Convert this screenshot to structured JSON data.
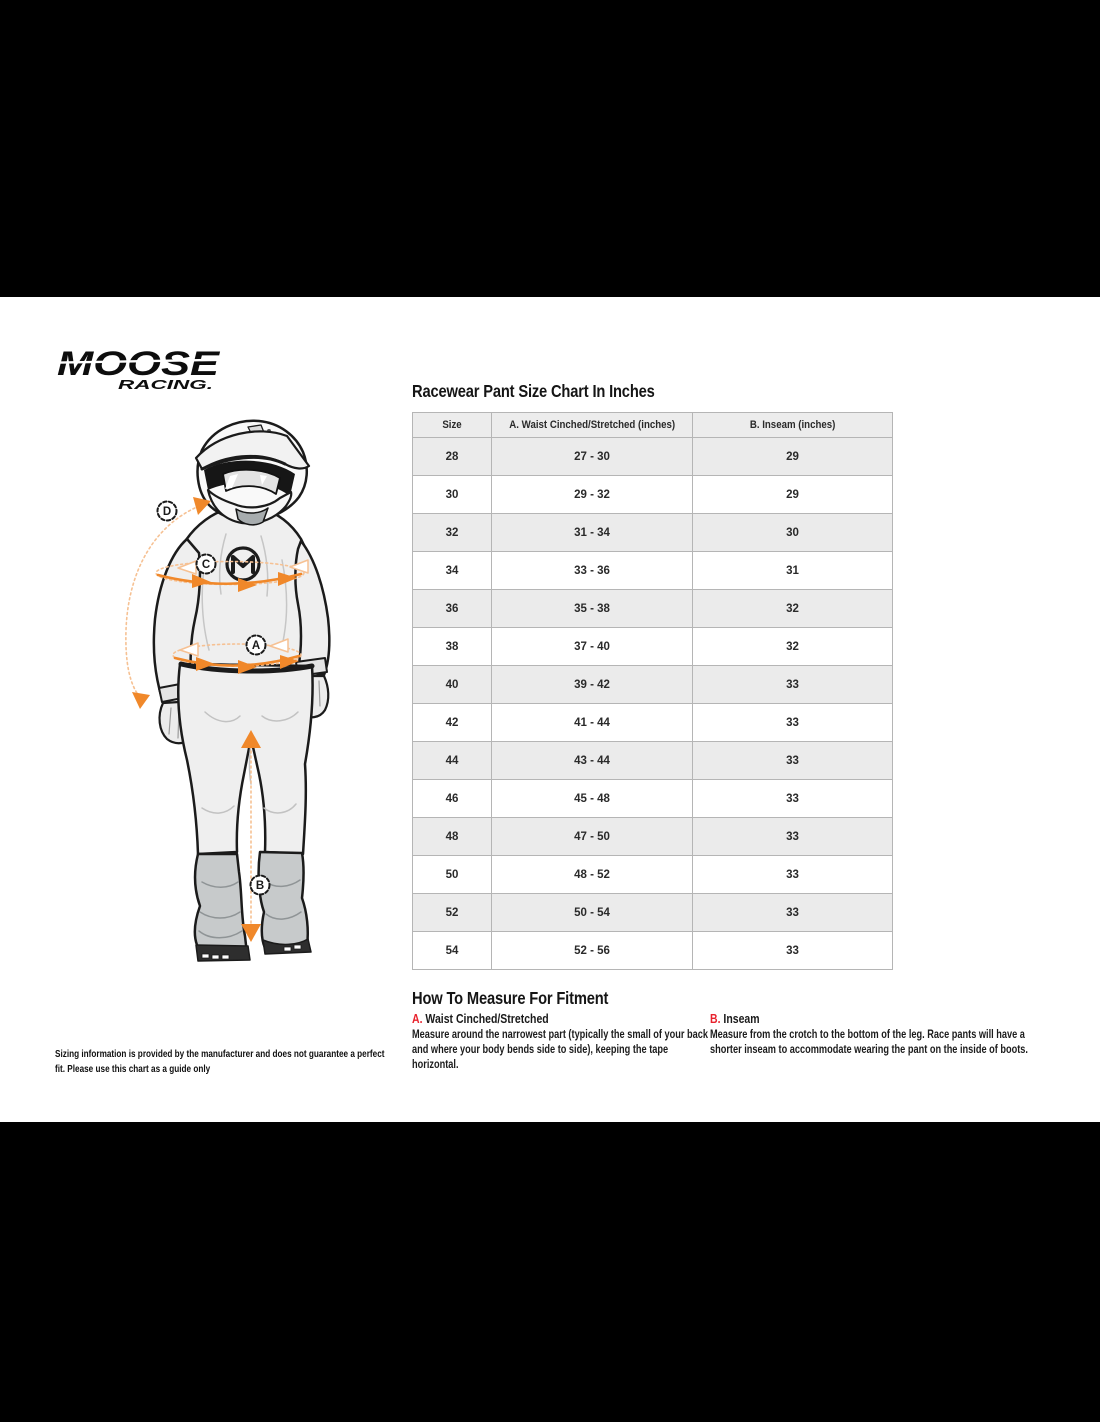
{
  "brand": {
    "name": "MOOSE",
    "sub": "RACING."
  },
  "size_chart": {
    "title": "Racewear Pant Size Chart In Inches",
    "columns": [
      "Size",
      "A. Waist Cinched/Stretched (inches)",
      "B. Inseam (inches)"
    ],
    "rows": [
      [
        "28",
        "27 - 30",
        "29"
      ],
      [
        "30",
        "29 - 32",
        "29"
      ],
      [
        "32",
        "31 - 34",
        "30"
      ],
      [
        "34",
        "33 - 36",
        "31"
      ],
      [
        "36",
        "35 - 38",
        "32"
      ],
      [
        "38",
        "37 - 40",
        "32"
      ],
      [
        "40",
        "39 - 42",
        "33"
      ],
      [
        "42",
        "41 - 44",
        "33"
      ],
      [
        "44",
        "43 - 44",
        "33"
      ],
      [
        "46",
        "45 - 48",
        "33"
      ],
      [
        "48",
        "47 - 50",
        "33"
      ],
      [
        "50",
        "48 - 52",
        "33"
      ],
      [
        "52",
        "50 - 54",
        "33"
      ],
      [
        "54",
        "52 - 56",
        "33"
      ]
    ]
  },
  "how_to_measure": {
    "title": "How To Measure For Fitment",
    "sections": [
      {
        "letter": "A.",
        "heading": "Waist Cinched/Stretched",
        "body": "Measure around the narrowest part (typically the small of your back and where your body bends side to side), keeping the tape horizontal."
      },
      {
        "letter": "B.",
        "heading": "Inseam",
        "body": "Measure from the crotch to the bottom of the leg. Race pants will have a shorter inseam to accommodate wearing the pant on the inside of boots."
      }
    ]
  },
  "disclaimer": "Sizing information is provided by the manufacturer and does not guarantee a perfect fit. Please use this chart as a guide only",
  "figure_annotations": {
    "d": "D",
    "c": "C",
    "a": "A",
    "b": "B"
  },
  "colors": {
    "accent_orange": "#F0882A",
    "accent_orange_light": "#F6C193",
    "accent_red": "#E8222D",
    "row_shade": "#EBEBEB",
    "table_border": "#B5B5B5",
    "ink": "#1C1C1C"
  }
}
